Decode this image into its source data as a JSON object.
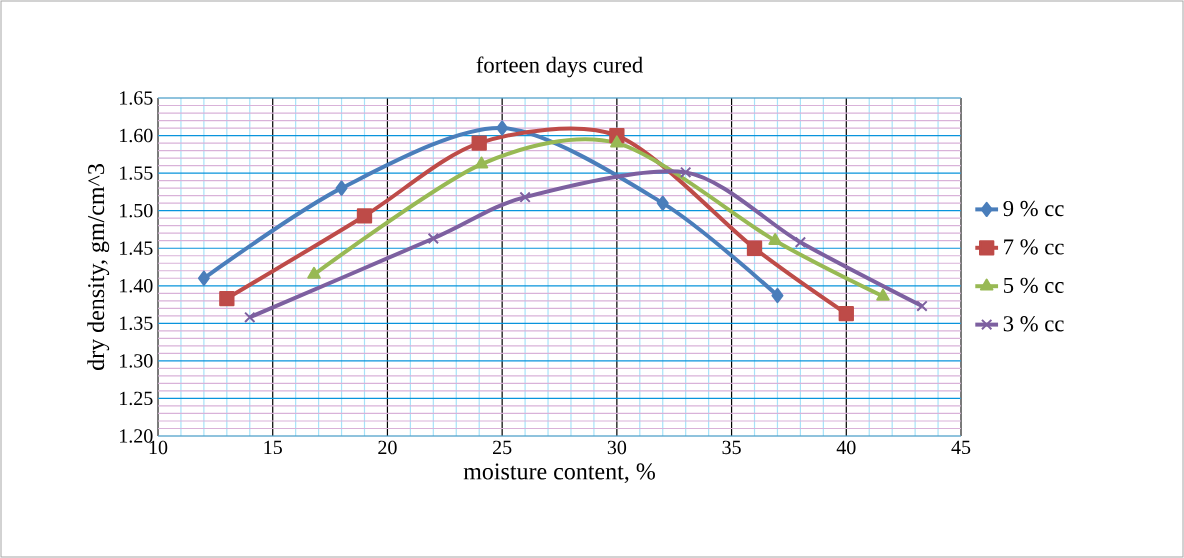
{
  "chart_data": {
    "type": "line",
    "title": "forteen days cured",
    "xlabel": "moisture content, %",
    "ylabel": "dry density, gm/cm^3",
    "xlim": [
      10,
      45
    ],
    "xticks": [
      10,
      {
        "value": 11,
        "label": null
      },
      {
        "value": 12,
        "label": null
      },
      {
        "value": 13,
        "label": null
      },
      {
        "value": 14,
        "label": null
      },
      15,
      {
        "value": 16,
        "label": null
      },
      {
        "value": 17,
        "label": null
      },
      {
        "value": 18,
        "label": null
      },
      {
        "value": 19,
        "label": null
      },
      20,
      {
        "value": 21,
        "label": null
      },
      {
        "value": 22,
        "label": null
      },
      {
        "value": 23,
        "label": null
      },
      {
        "value": 24,
        "label": null
      },
      25,
      {
        "value": 26,
        "label": null
      },
      {
        "value": 27,
        "label": null
      },
      {
        "value": 28,
        "label": null
      },
      {
        "value": 29,
        "label": null
      },
      30,
      {
        "value": 31,
        "label": null
      },
      {
        "value": 32,
        "label": null
      },
      {
        "value": 33,
        "label": null
      },
      {
        "value": 34,
        "label": null
      },
      35,
      {
        "value": 36,
        "label": null
      },
      {
        "value": 37,
        "label": null
      },
      {
        "value": 38,
        "label": null
      },
      {
        "value": 39,
        "label": null
      },
      40,
      {
        "value": 41,
        "label": null
      },
      {
        "value": 42,
        "label": null
      },
      {
        "value": 43,
        "label": null
      },
      {
        "value": 44,
        "label": null
      },
      45
    ],
    "ylim": [
      1.2,
      1.65
    ],
    "yticks": [
      {
        "value": 1.2,
        "label": "1.20"
      },
      {
        "value": 1.21,
        "label": null
      },
      {
        "value": 1.22,
        "label": null
      },
      {
        "value": 1.23,
        "label": null
      },
      {
        "value": 1.24,
        "label": null
      },
      {
        "value": 1.25,
        "label": "1.25"
      },
      {
        "value": 1.26,
        "label": null
      },
      {
        "value": 1.27,
        "label": null
      },
      {
        "value": 1.28,
        "label": null
      },
      {
        "value": 1.29,
        "label": null
      },
      {
        "value": 1.3,
        "label": "1.30"
      },
      {
        "value": 1.31,
        "label": null
      },
      {
        "value": 1.32,
        "label": null
      },
      {
        "value": 1.33,
        "label": null
      },
      {
        "value": 1.34,
        "label": null
      },
      {
        "value": 1.35,
        "label": "1.35"
      },
      {
        "value": 1.36,
        "label": null
      },
      {
        "value": 1.37,
        "label": null
      },
      {
        "value": 1.38,
        "label": null
      },
      {
        "value": 1.39,
        "label": null
      },
      {
        "value": 1.4,
        "label": "1.40"
      },
      {
        "value": 1.41,
        "label": null
      },
      {
        "value": 1.42,
        "label": null
      },
      {
        "value": 1.43,
        "label": null
      },
      {
        "value": 1.44,
        "label": null
      },
      {
        "value": 1.45,
        "label": "1.45"
      },
      {
        "value": 1.46,
        "label": null
      },
      {
        "value": 1.47,
        "label": null
      },
      {
        "value": 1.48,
        "label": null
      },
      {
        "value": 1.49,
        "label": null
      },
      {
        "value": 1.5,
        "label": "1.50"
      },
      {
        "value": 1.51,
        "label": null
      },
      {
        "value": 1.52,
        "label": null
      },
      {
        "value": 1.53,
        "label": null
      },
      {
        "value": 1.54,
        "label": null
      },
      {
        "value": 1.55,
        "label": "1.55"
      },
      {
        "value": 1.56,
        "label": null
      },
      {
        "value": 1.57,
        "label": null
      },
      {
        "value": 1.58,
        "label": null
      },
      {
        "value": 1.59,
        "label": null
      },
      {
        "value": 1.6,
        "label": "1.60"
      },
      {
        "value": 1.61,
        "label": null
      },
      {
        "value": 1.62,
        "label": null
      },
      {
        "value": 1.63,
        "label": null
      },
      {
        "value": 1.64,
        "label": null
      },
      {
        "value": 1.65,
        "label": "1.65"
      }
    ],
    "grid": true,
    "legend": "right",
    "series": [
      {
        "name": "9 % cc",
        "color": "#4a7ebb",
        "marker": "diamond",
        "x": [
          12,
          18,
          25,
          32,
          37
        ],
        "values": [
          1.41,
          1.53,
          1.61,
          1.51,
          1.387
        ]
      },
      {
        "name": "7 % cc",
        "color": "#be4b48",
        "marker": "square",
        "x": [
          13,
          19,
          24,
          30,
          36,
          40
        ],
        "values": [
          1.383,
          1.493,
          1.59,
          1.6,
          1.45,
          1.363
        ]
      },
      {
        "name": "5 % cc",
        "color": "#98b954",
        "marker": "triangle",
        "x": [
          16.8,
          24.1,
          30,
          36.9,
          41.6
        ],
        "values": [
          1.415,
          1.562,
          1.59,
          1.46,
          1.386
        ]
      },
      {
        "name": "3 % cc",
        "color": "#7d60a0",
        "marker": "cross",
        "x": [
          14,
          22,
          26,
          33,
          38,
          43.3
        ],
        "values": [
          1.358,
          1.463,
          1.518,
          1.551,
          1.458,
          1.373
        ]
      }
    ]
  }
}
